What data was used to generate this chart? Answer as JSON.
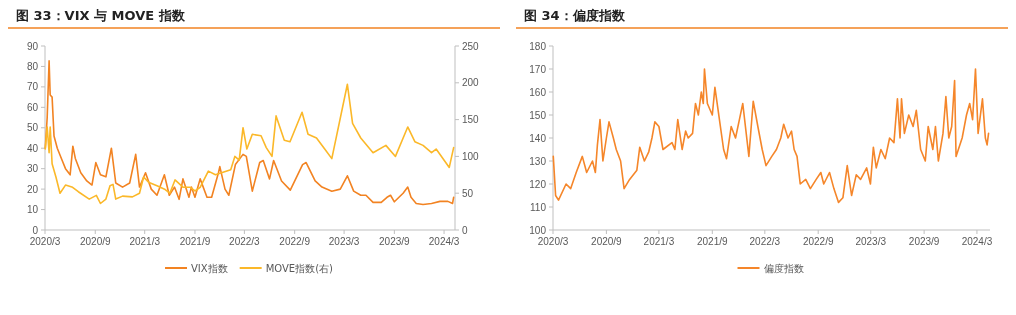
{
  "chart_data": [
    {
      "type": "line",
      "title": "图 33：VIX 与 MOVE 指数",
      "legend": "bottom",
      "grid": false,
      "xlim": [
        "2020-03-01",
        "2024-04-10"
      ],
      "xticks": [
        {
          "value": "2020-03-01",
          "label": "2020/3"
        },
        {
          "value": "2020-09-01",
          "label": "2020/9"
        },
        {
          "value": "2021-03-01",
          "label": "2021/3"
        },
        {
          "value": "2021-09-01",
          "label": "2021/9"
        },
        {
          "value": "2022-03-01",
          "label": "2022/3"
        },
        {
          "value": "2022-09-01",
          "label": "2022/9"
        },
        {
          "value": "2023-03-01",
          "label": "2023/3"
        },
        {
          "value": "2023-09-01",
          "label": "2023/9"
        },
        {
          "value": "2024-03-01",
          "label": "2024/3"
        }
      ],
      "ylim": [
        0,
        90
      ],
      "yticks": [
        0,
        10,
        20,
        30,
        40,
        50,
        60,
        70,
        80,
        90
      ],
      "y2lim": [
        0,
        250
      ],
      "y2ticks": [
        0,
        50,
        100,
        150,
        200,
        250
      ],
      "series": [
        {
          "name": "VIX指数",
          "color": "#f28322",
          "x": [
            "2020-03-02",
            "2020-03-09",
            "2020-03-16",
            "2020-03-20",
            "2020-03-27",
            "2020-04-03",
            "2020-04-15",
            "2020-04-30",
            "2020-05-15",
            "2020-06-01",
            "2020-06-11",
            "2020-06-20",
            "2020-07-10",
            "2020-08-01",
            "2020-08-20",
            "2020-09-03",
            "2020-09-20",
            "2020-10-10",
            "2020-10-30",
            "2020-11-15",
            "2020-12-10",
            "2021-01-05",
            "2021-01-27",
            "2021-02-10",
            "2021-03-04",
            "2021-03-25",
            "2021-04-15",
            "2021-05-12",
            "2021-05-30",
            "2021-06-18",
            "2021-07-05",
            "2021-07-19",
            "2021-08-10",
            "2021-08-19",
            "2021-09-01",
            "2021-09-20",
            "2021-10-15",
            "2021-11-01",
            "2021-11-26",
            "2021-12-01",
            "2021-12-20",
            "2022-01-03",
            "2022-01-27",
            "2022-02-24",
            "2022-03-08",
            "2022-03-30",
            "2022-04-26",
            "2022-05-09",
            "2022-06-01",
            "2022-06-16",
            "2022-07-15",
            "2022-08-16",
            "2022-09-30",
            "2022-10-13",
            "2022-11-15",
            "2022-12-10",
            "2023-01-15",
            "2023-02-15",
            "2023-03-13",
            "2023-04-05",
            "2023-05-01",
            "2023-05-20",
            "2023-06-15",
            "2023-07-15",
            "2023-08-05",
            "2023-08-18",
            "2023-09-01",
            "2023-10-03",
            "2023-10-20",
            "2023-11-01",
            "2023-11-20",
            "2023-12-15",
            "2024-01-15",
            "2024-02-15",
            "2024-03-15",
            "2024-04-01",
            "2024-04-05"
          ],
          "values": [
            40,
            55,
            82.7,
            66,
            65,
            46,
            40,
            35,
            30,
            27,
            41,
            35,
            28,
            24,
            22,
            33,
            27,
            26,
            40,
            23,
            21,
            23,
            37,
            21,
            28,
            20,
            17,
            27,
            17,
            21,
            15,
            25,
            16,
            21,
            16,
            25,
            16,
            16,
            28,
            31,
            20,
            17,
            32,
            37,
            36,
            19,
            33,
            34,
            25,
            34,
            24,
            19.5,
            32,
            33,
            24,
            21,
            19,
            20,
            26.5,
            19,
            17,
            17,
            13.5,
            13.5,
            16,
            17,
            13.8,
            18,
            21,
            16,
            13,
            12.5,
            13,
            14,
            14,
            13,
            16
          ]
        },
        {
          "name": "MOVE指数(右)",
          "color": "#fbb829",
          "axis": "y2",
          "x": [
            "2020-03-02",
            "2020-03-09",
            "2020-03-16",
            "2020-03-20",
            "2020-03-27",
            "2020-04-10",
            "2020-04-25",
            "2020-05-15",
            "2020-06-10",
            "2020-07-01",
            "2020-08-10",
            "2020-09-05",
            "2020-09-20",
            "2020-10-10",
            "2020-10-25",
            "2020-11-05",
            "2020-11-15",
            "2020-12-10",
            "2021-01-15",
            "2021-02-10",
            "2021-02-25",
            "2021-03-15",
            "2021-04-15",
            "2021-05-15",
            "2021-06-01",
            "2021-06-20",
            "2021-07-20",
            "2021-08-15",
            "2021-09-01",
            "2021-09-20",
            "2021-10-20",
            "2021-11-15",
            "2021-12-10",
            "2022-01-10",
            "2022-01-25",
            "2022-02-10",
            "2022-02-24",
            "2022-03-10",
            "2022-03-30",
            "2022-05-01",
            "2022-05-20",
            "2022-06-10",
            "2022-06-25",
            "2022-07-25",
            "2022-08-15",
            "2022-09-28",
            "2022-10-20",
            "2022-11-20",
            "2022-12-20",
            "2023-01-15",
            "2023-03-13",
            "2023-04-01",
            "2023-05-01",
            "2023-06-15",
            "2023-08-01",
            "2023-09-05",
            "2023-10-20",
            "2023-11-15",
            "2023-12-15",
            "2024-01-15",
            "2024-02-01",
            "2024-03-20",
            "2024-04-05"
          ],
          "values": [
            110,
            140,
            105,
            140,
            90,
            72,
            50,
            61,
            58,
            52,
            42,
            47,
            36,
            42,
            60,
            62,
            42,
            46,
            45,
            50,
            72,
            65,
            60,
            55,
            50,
            68,
            58,
            58,
            53,
            58,
            80,
            75,
            78,
            82,
            100,
            95,
            139,
            110,
            130,
            128,
            112,
            100,
            155,
            122,
            120,
            160,
            130,
            125,
            110,
            97,
            198,
            145,
            125,
            105,
            115,
            100,
            140,
            120,
            115,
            105,
            110,
            85,
            112
          ]
        }
      ]
    },
    {
      "type": "line",
      "title": "图 34：偏度指数",
      "legend": "bottom",
      "grid": false,
      "xlim": [
        "2020-03-01",
        "2024-04-15"
      ],
      "xticks": [
        {
          "value": "2020-03-01",
          "label": "2020/3"
        },
        {
          "value": "2020-09-01",
          "label": "2020/9"
        },
        {
          "value": "2021-03-01",
          "label": "2021/3"
        },
        {
          "value": "2021-09-01",
          "label": "2021/9"
        },
        {
          "value": "2022-03-01",
          "label": "2022/3"
        },
        {
          "value": "2022-09-01",
          "label": "2022/9"
        },
        {
          "value": "2023-03-01",
          "label": "2023/3"
        },
        {
          "value": "2023-09-01",
          "label": "2023/9"
        },
        {
          "value": "2024-03-01",
          "label": "2024/3"
        }
      ],
      "ylim": [
        100,
        180
      ],
      "yticks": [
        100,
        110,
        120,
        130,
        140,
        150,
        160,
        170,
        180
      ],
      "series": [
        {
          "name": "偏度指数",
          "color": "#f5862a",
          "x": [
            "2020-03-02",
            "2020-03-10",
            "2020-03-20",
            "2020-04-15",
            "2020-05-01",
            "2020-05-20",
            "2020-06-10",
            "2020-06-25",
            "2020-07-15",
            "2020-07-25",
            "2020-08-01",
            "2020-08-10",
            "2020-08-20",
            "2020-09-01",
            "2020-09-10",
            "2020-09-25",
            "2020-10-05",
            "2020-10-20",
            "2020-11-01",
            "2020-11-20",
            "2020-12-15",
            "2020-12-25",
            "2021-01-10",
            "2021-01-25",
            "2021-02-05",
            "2021-02-15",
            "2021-03-01",
            "2021-03-15",
            "2021-04-15",
            "2021-04-25",
            "2021-05-05",
            "2021-05-20",
            "2021-06-01",
            "2021-06-10",
            "2021-06-25",
            "2021-07-05",
            "2021-07-15",
            "2021-07-25",
            "2021-08-01",
            "2021-08-05",
            "2021-08-15",
            "2021-09-01",
            "2021-09-10",
            "2021-09-20",
            "2021-10-10",
            "2021-10-20",
            "2021-11-05",
            "2021-11-20",
            "2021-12-05",
            "2021-12-15",
            "2022-01-05",
            "2022-01-20",
            "2022-02-05",
            "2022-02-20",
            "2022-03-05",
            "2022-03-25",
            "2022-04-10",
            "2022-04-25",
            "2022-05-05",
            "2022-05-20",
            "2022-06-01",
            "2022-06-10",
            "2022-06-20",
            "2022-07-01",
            "2022-07-20",
            "2022-08-05",
            "2022-08-25",
            "2022-09-10",
            "2022-09-20",
            "2022-10-10",
            "2022-10-25",
            "2022-11-10",
            "2022-11-25",
            "2022-12-10",
            "2022-12-25",
            "2023-01-10",
            "2023-01-25",
            "2023-02-15",
            "2023-02-28",
            "2023-03-10",
            "2023-03-20",
            "2023-04-05",
            "2023-04-20",
            "2023-05-05",
            "2023-05-20",
            "2023-06-01",
            "2023-06-10",
            "2023-06-15",
            "2023-06-25",
            "2023-07-10",
            "2023-07-25",
            "2023-08-05",
            "2023-08-20",
            "2023-09-05",
            "2023-09-15",
            "2023-10-01",
            "2023-10-10",
            "2023-10-20",
            "2023-11-05",
            "2023-11-15",
            "2023-11-25",
            "2023-12-05",
            "2023-12-15",
            "2023-12-20",
            "2024-01-10",
            "2024-01-25",
            "2024-02-05",
            "2024-02-15",
            "2024-02-25",
            "2024-03-05",
            "2024-03-20",
            "2024-03-30",
            "2024-04-05",
            "2024-04-10"
          ],
          "values": [
            132,
            115,
            113,
            120,
            118,
            125,
            132,
            125,
            130,
            125,
            137,
            148,
            130,
            140,
            147,
            140,
            135,
            130,
            118,
            122,
            126,
            136,
            130,
            134,
            140,
            147,
            145,
            135,
            138,
            135,
            148,
            135,
            143,
            140,
            142,
            155,
            150,
            160,
            155,
            170,
            155,
            150,
            162,
            153,
            135,
            131,
            145,
            140,
            149,
            155,
            132,
            156,
            145,
            135,
            128,
            132,
            135,
            140,
            146,
            140,
            143,
            135,
            132,
            120,
            122,
            118,
            122,
            125,
            120,
            125,
            118,
            112,
            114,
            128,
            115,
            124,
            122,
            127,
            120,
            136,
            127,
            135,
            131,
            140,
            138,
            157,
            140,
            157,
            142,
            150,
            145,
            152,
            135,
            130,
            145,
            135,
            145,
            130,
            142,
            158,
            140,
            145,
            165,
            132,
            140,
            150,
            155,
            148,
            170,
            142,
            157,
            140,
            137,
            142
          ]
        }
      ]
    }
  ]
}
